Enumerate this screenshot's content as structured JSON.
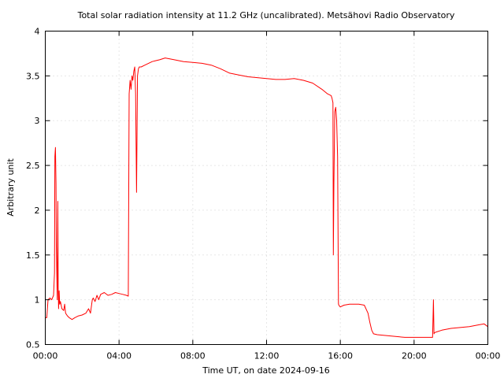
{
  "chart_data": {
    "type": "line",
    "title": "Total solar radiation intensity at 11.2 GHz (uncalibrated). Metsähovi Radio Observatory",
    "xlabel": "Time UT, on date 2024-09-16",
    "ylabel": "Arbitrary unit",
    "xlim": [
      0,
      24
    ],
    "ylim": [
      0.5,
      4
    ],
    "grid": true,
    "xticks": [
      0,
      4,
      8,
      12,
      16,
      20,
      24
    ],
    "xtick_labels": [
      "00:00",
      "04:00",
      "08:00",
      "12:00",
      "16:00",
      "20:00",
      "00:00"
    ],
    "yticks": [
      0.5,
      1,
      1.5,
      2,
      2.5,
      3,
      3.5,
      4
    ],
    "ytick_labels": [
      "0.5",
      "1",
      "1.5",
      "2",
      "2.5",
      "3",
      "3.5",
      "4"
    ],
    "series": [
      {
        "color": "#ff0000",
        "x": [
          0.0,
          0.08,
          0.15,
          0.25,
          0.35,
          0.45,
          0.5,
          0.52,
          0.55,
          0.58,
          0.6,
          0.65,
          0.68,
          0.7,
          0.72,
          0.75,
          0.78,
          0.82,
          0.9,
          1.0,
          1.05,
          1.1,
          1.2,
          1.3,
          1.45,
          1.6,
          1.8,
          2.0,
          2.2,
          2.35,
          2.45,
          2.55,
          2.6,
          2.7,
          2.8,
          2.9,
          3.0,
          3.2,
          3.4,
          3.6,
          3.8,
          4.0,
          4.2,
          4.4,
          4.5,
          4.55,
          4.6,
          4.65,
          4.7,
          4.75,
          4.8,
          4.85,
          4.9,
          4.95,
          5.0,
          5.05,
          5.1,
          5.2,
          5.4,
          5.6,
          5.8,
          6.0,
          6.2,
          6.5,
          7.0,
          7.5,
          8.0,
          8.5,
          9.0,
          9.5,
          10.0,
          10.5,
          11.0,
          11.5,
          12.0,
          12.5,
          13.0,
          13.5,
          14.0,
          14.5,
          15.0,
          15.3,
          15.5,
          15.55,
          15.6,
          15.62,
          15.65,
          15.7,
          15.75,
          15.8,
          15.85,
          15.9,
          15.95,
          16.0,
          16.2,
          16.5,
          17.0,
          17.3,
          17.5,
          17.6,
          17.7,
          17.8,
          18.0,
          18.5,
          19.0,
          19.5,
          20.0,
          20.5,
          21.0,
          21.05,
          21.08,
          21.1,
          21.2,
          21.5,
          22.0,
          22.5,
          23.0,
          23.5,
          23.8,
          24.0
        ],
        "y": [
          0.8,
          0.8,
          1.0,
          1.02,
          1.0,
          1.05,
          1.3,
          2.6,
          2.7,
          2.3,
          1.6,
          1.0,
          2.1,
          1.15,
          0.9,
          1.1,
          0.95,
          0.98,
          0.9,
          0.88,
          0.95,
          0.85,
          0.82,
          0.8,
          0.78,
          0.8,
          0.82,
          0.83,
          0.85,
          0.9,
          0.85,
          1.0,
          1.02,
          0.98,
          1.05,
          1.0,
          1.06,
          1.08,
          1.05,
          1.06,
          1.08,
          1.07,
          1.06,
          1.05,
          1.04,
          3.3,
          3.45,
          3.35,
          3.5,
          3.45,
          3.55,
          3.6,
          3.3,
          2.2,
          3.5,
          3.58,
          3.6,
          3.6,
          3.62,
          3.64,
          3.66,
          3.67,
          3.68,
          3.7,
          3.68,
          3.66,
          3.65,
          3.64,
          3.62,
          3.58,
          3.53,
          3.51,
          3.49,
          3.48,
          3.47,
          3.46,
          3.46,
          3.47,
          3.45,
          3.42,
          3.35,
          3.3,
          3.28,
          3.25,
          3.2,
          1.5,
          2.3,
          3.1,
          3.15,
          3.0,
          2.6,
          0.95,
          0.93,
          0.92,
          0.94,
          0.95,
          0.95,
          0.94,
          0.85,
          0.75,
          0.66,
          0.62,
          0.61,
          0.6,
          0.59,
          0.58,
          0.58,
          0.58,
          0.58,
          1.0,
          0.62,
          0.63,
          0.64,
          0.66,
          0.68,
          0.69,
          0.7,
          0.72,
          0.73,
          0.7
        ]
      }
    ]
  }
}
